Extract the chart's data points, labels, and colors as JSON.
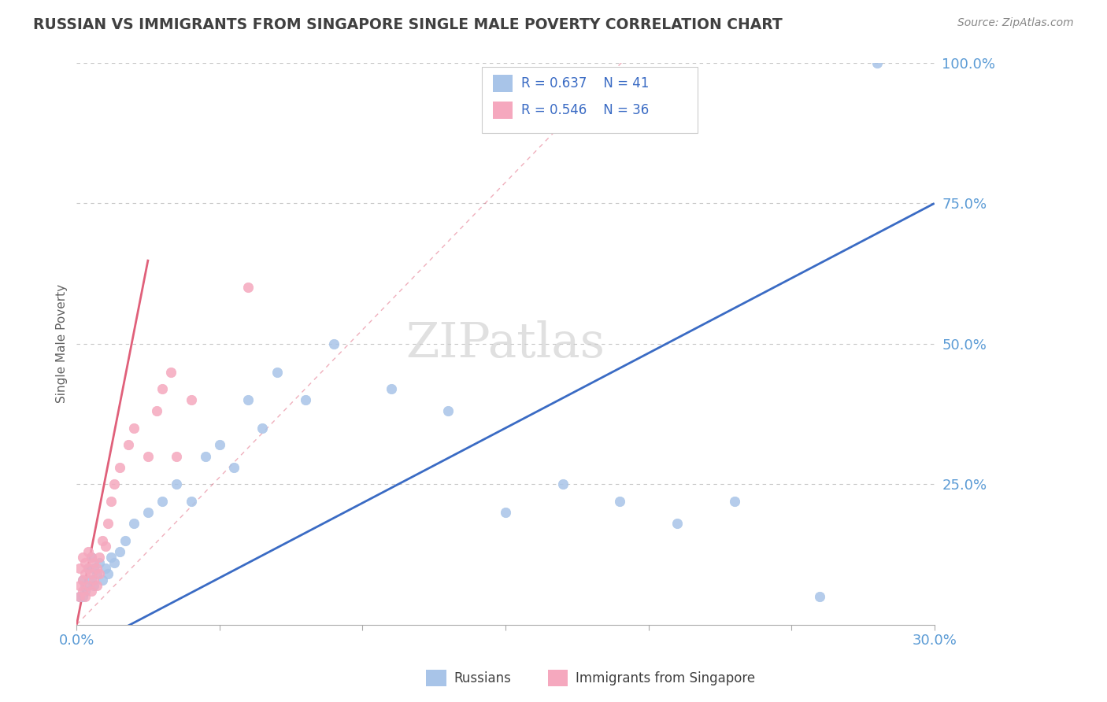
{
  "title": "RUSSIAN VS IMMIGRANTS FROM SINGAPORE SINGLE MALE POVERTY CORRELATION CHART",
  "source": "Source: ZipAtlas.com",
  "ylabel": "Single Male Poverty",
  "xlim": [
    0.0,
    0.3
  ],
  "ylim": [
    0.0,
    1.0
  ],
  "xticks": [
    0.0,
    0.05,
    0.1,
    0.15,
    0.2,
    0.25,
    0.3
  ],
  "ytick_positions": [
    0.0,
    0.25,
    0.5,
    0.75,
    1.0
  ],
  "ytick_labels": [
    "",
    "25.0%",
    "50.0%",
    "75.0%",
    "100.0%"
  ],
  "legend_r1": "R = 0.637",
  "legend_n1": "N = 41",
  "legend_r2": "R = 0.546",
  "legend_n2": "N = 36",
  "blue_color": "#a8c4e8",
  "pink_color": "#f5a8be",
  "trendline_blue": "#3a6bc4",
  "trendline_pink": "#e0607a",
  "title_color": "#404040",
  "axis_label_color": "#5b9bd5",
  "grid_color": "#c8c8c8",
  "russians_x": [
    0.001,
    0.002,
    0.002,
    0.003,
    0.003,
    0.004,
    0.005,
    0.005,
    0.006,
    0.006,
    0.007,
    0.008,
    0.009,
    0.01,
    0.011,
    0.012,
    0.013,
    0.015,
    0.017,
    0.02,
    0.025,
    0.03,
    0.035,
    0.04,
    0.045,
    0.05,
    0.055,
    0.06,
    0.065,
    0.07,
    0.08,
    0.09,
    0.11,
    0.13,
    0.15,
    0.17,
    0.19,
    0.21,
    0.23,
    0.26,
    0.28
  ],
  "russians_y": [
    0.05,
    0.08,
    0.05,
    0.07,
    0.06,
    0.1,
    0.12,
    0.08,
    0.1,
    0.07,
    0.09,
    0.11,
    0.08,
    0.1,
    0.09,
    0.12,
    0.11,
    0.13,
    0.15,
    0.18,
    0.2,
    0.22,
    0.25,
    0.22,
    0.3,
    0.32,
    0.28,
    0.4,
    0.35,
    0.45,
    0.4,
    0.5,
    0.42,
    0.38,
    0.2,
    0.25,
    0.22,
    0.18,
    0.22,
    0.05,
    1.0
  ],
  "singapore_x": [
    0.001,
    0.001,
    0.001,
    0.002,
    0.002,
    0.002,
    0.003,
    0.003,
    0.003,
    0.004,
    0.004,
    0.004,
    0.005,
    0.005,
    0.005,
    0.006,
    0.006,
    0.007,
    0.007,
    0.008,
    0.008,
    0.009,
    0.01,
    0.011,
    0.012,
    0.013,
    0.015,
    0.018,
    0.02,
    0.025,
    0.028,
    0.03,
    0.033,
    0.035,
    0.04,
    0.06
  ],
  "singapore_y": [
    0.05,
    0.07,
    0.1,
    0.06,
    0.08,
    0.12,
    0.05,
    0.09,
    0.11,
    0.07,
    0.1,
    0.13,
    0.06,
    0.09,
    0.12,
    0.08,
    0.11,
    0.07,
    0.1,
    0.09,
    0.12,
    0.15,
    0.14,
    0.18,
    0.22,
    0.25,
    0.28,
    0.32,
    0.35,
    0.3,
    0.38,
    0.42,
    0.45,
    0.3,
    0.4,
    0.6
  ],
  "blue_trend": [
    0.0,
    0.3,
    -0.05,
    0.75
  ],
  "pink_trend_solid": [
    0.0,
    0.025,
    0.0,
    0.65
  ],
  "pink_trend_dashed": [
    0.0,
    0.2,
    0.0,
    1.05
  ]
}
